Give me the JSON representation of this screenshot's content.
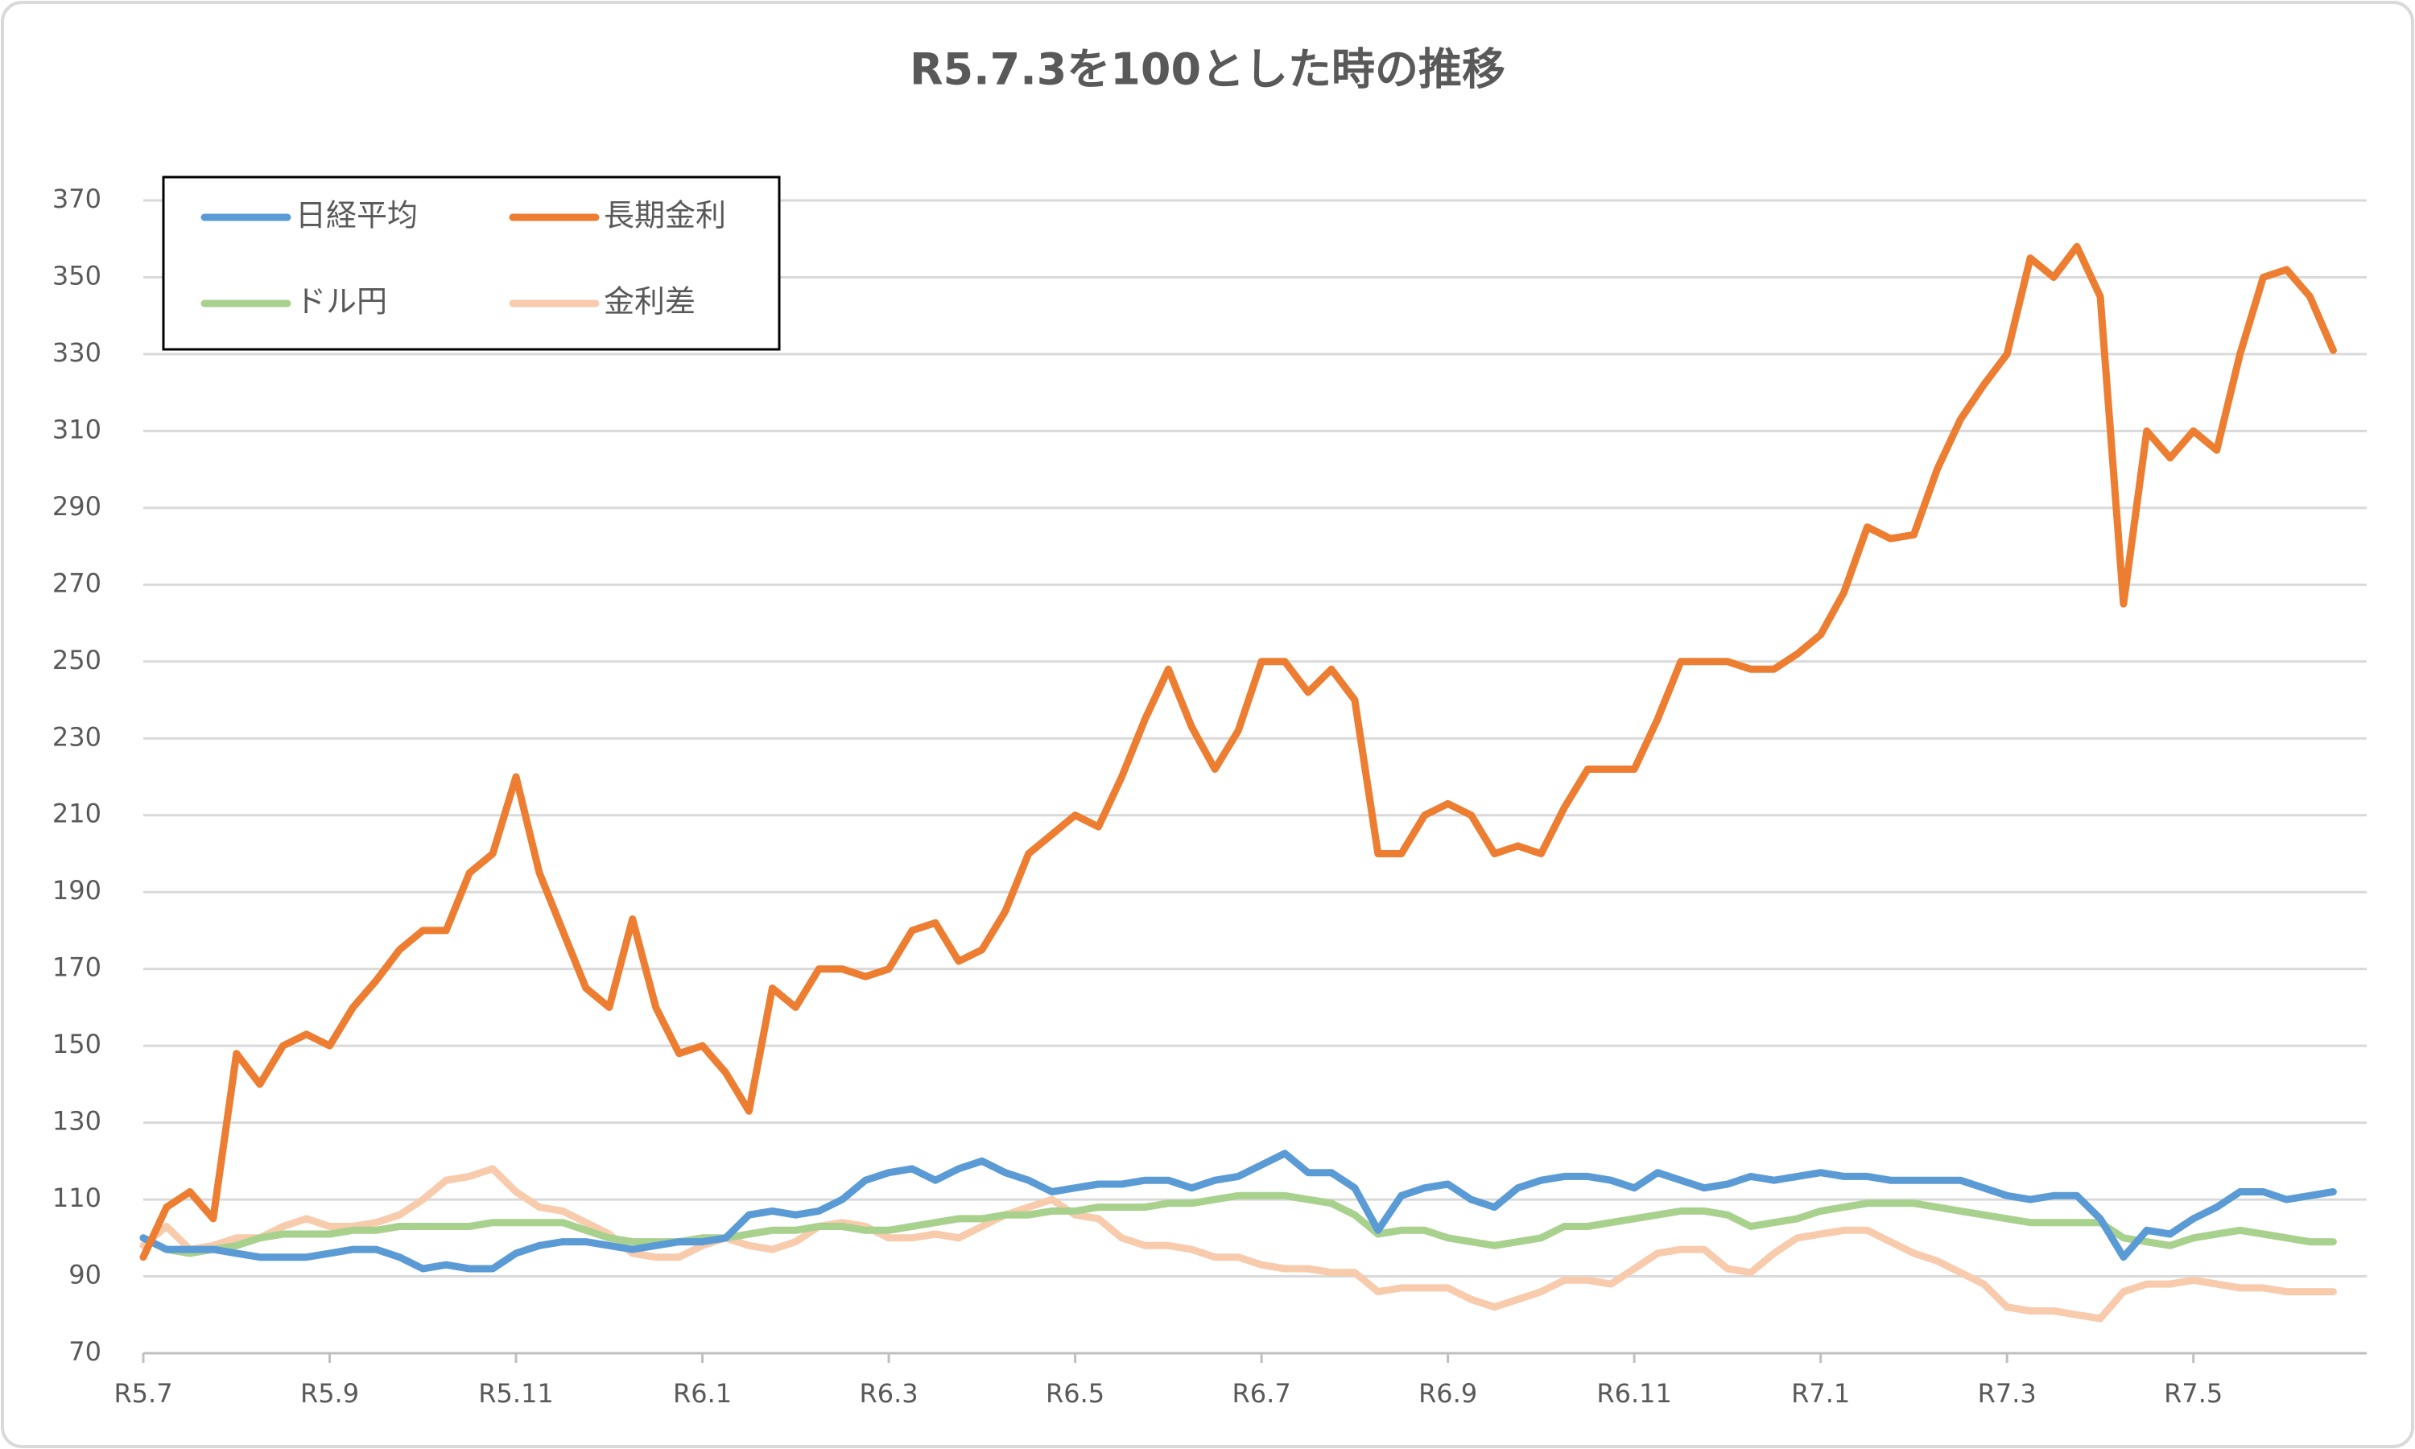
{
  "chart_data": {
    "type": "line",
    "title": "R5.7.3を100とした時の推移",
    "categories": [
      "R5.7",
      null,
      null,
      null,
      null,
      null,
      null,
      null,
      "R5.9",
      null,
      null,
      null,
      null,
      null,
      null,
      null,
      "R5.11",
      null,
      null,
      null,
      null,
      null,
      null,
      null,
      "R6.1",
      null,
      null,
      null,
      null,
      null,
      null,
      null,
      "R6.3",
      null,
      null,
      null,
      null,
      null,
      null,
      null,
      "R6.5",
      null,
      null,
      null,
      null,
      null,
      null,
      null,
      "R6.7",
      null,
      null,
      null,
      null,
      null,
      null,
      null,
      "R6.9",
      null,
      null,
      null,
      null,
      null,
      null,
      null,
      "R6.11",
      null,
      null,
      null,
      null,
      null,
      null,
      null,
      "R7.1",
      null,
      null,
      null,
      null,
      null,
      null,
      null,
      "R7.3",
      null,
      null,
      null,
      null,
      null,
      null,
      null,
      "R7.5",
      null,
      null,
      null,
      null,
      null,
      null
    ],
    "series": [
      {
        "name": "日経平均",
        "color": "#5b9bd5",
        "values": [
          100,
          97,
          97,
          97,
          96,
          95,
          95,
          95,
          96,
          97,
          97,
          95,
          92,
          93,
          92,
          92,
          96,
          98,
          99,
          99,
          98,
          97,
          98,
          99,
          99,
          100,
          106,
          107,
          106,
          107,
          110,
          115,
          117,
          118,
          115,
          118,
          120,
          117,
          115,
          112,
          113,
          114,
          114,
          115,
          115,
          113,
          115,
          116,
          119,
          122,
          117,
          117,
          113,
          102,
          111,
          113,
          114,
          110,
          108,
          113,
          115,
          116,
          116,
          115,
          113,
          117,
          115,
          113,
          114,
          116,
          115,
          116,
          117,
          116,
          116,
          115,
          115,
          115,
          115,
          113,
          111,
          110,
          111,
          111,
          105,
          95,
          102,
          101,
          105,
          108,
          112,
          112,
          110,
          111,
          112
        ]
      },
      {
        "name": "長期金利",
        "color": "#ed7d31",
        "values": [
          95,
          108,
          112,
          105,
          148,
          140,
          150,
          153,
          150,
          160,
          167,
          175,
          180,
          180,
          195,
          200,
          220,
          195,
          180,
          165,
          160,
          183,
          160,
          148,
          150,
          143,
          133,
          165,
          160,
          170,
          170,
          168,
          170,
          180,
          182,
          172,
          175,
          185,
          200,
          205,
          210,
          207,
          220,
          235,
          248,
          233,
          222,
          232,
          250,
          250,
          242,
          248,
          240,
          200,
          200,
          210,
          213,
          210,
          200,
          202,
          200,
          212,
          222,
          222,
          222,
          235,
          250,
          250,
          250,
          248,
          248,
          252,
          257,
          268,
          285,
          282,
          283,
          300,
          313,
          322,
          330,
          355,
          350,
          358,
          345,
          265,
          310,
          303,
          310,
          305,
          330,
          350,
          352,
          345,
          331
        ]
      },
      {
        "name": "ドル円",
        "color": "#a9d18e",
        "values": [
          100,
          97,
          96,
          97,
          98,
          100,
          101,
          101,
          101,
          102,
          102,
          103,
          103,
          103,
          103,
          104,
          104,
          104,
          104,
          102,
          100,
          99,
          99,
          99,
          100,
          100,
          101,
          102,
          102,
          103,
          103,
          102,
          102,
          103,
          104,
          105,
          105,
          106,
          106,
          107,
          107,
          108,
          108,
          108,
          109,
          109,
          110,
          111,
          111,
          111,
          110,
          109,
          106,
          101,
          102,
          102,
          100,
          99,
          98,
          99,
          100,
          103,
          103,
          104,
          105,
          106,
          107,
          107,
          106,
          103,
          104,
          105,
          107,
          108,
          109,
          109,
          109,
          108,
          107,
          106,
          105,
          104,
          104,
          104,
          104,
          100,
          99,
          98,
          100,
          101,
          102,
          101,
          100,
          99,
          99
        ]
      },
      {
        "name": "金利差",
        "color": "#f8cbad",
        "values": [
          98,
          103,
          97,
          98,
          100,
          100,
          103,
          105,
          103,
          103,
          104,
          106,
          110,
          115,
          116,
          118,
          112,
          108,
          107,
          104,
          101,
          96,
          95,
          95,
          98,
          100,
          98,
          97,
          99,
          103,
          104,
          103,
          100,
          100,
          101,
          100,
          103,
          106,
          108,
          110,
          106,
          105,
          100,
          98,
          98,
          97,
          95,
          95,
          93,
          92,
          92,
          91,
          91,
          86,
          87,
          87,
          87,
          84,
          82,
          84,
          86,
          89,
          89,
          88,
          92,
          96,
          97,
          97,
          92,
          91,
          96,
          100,
          101,
          102,
          102,
          99,
          96,
          94,
          91,
          88,
          82,
          81,
          81,
          80,
          79,
          86,
          88,
          88,
          89,
          88,
          87,
          87,
          86,
          86,
          86
        ]
      }
    ],
    "ylim": [
      70,
      370
    ],
    "yticks": [
      70,
      90,
      110,
      130,
      150,
      170,
      190,
      210,
      230,
      250,
      270,
      290,
      310,
      330,
      350,
      370
    ],
    "grid": true,
    "legend": "upper left"
  }
}
